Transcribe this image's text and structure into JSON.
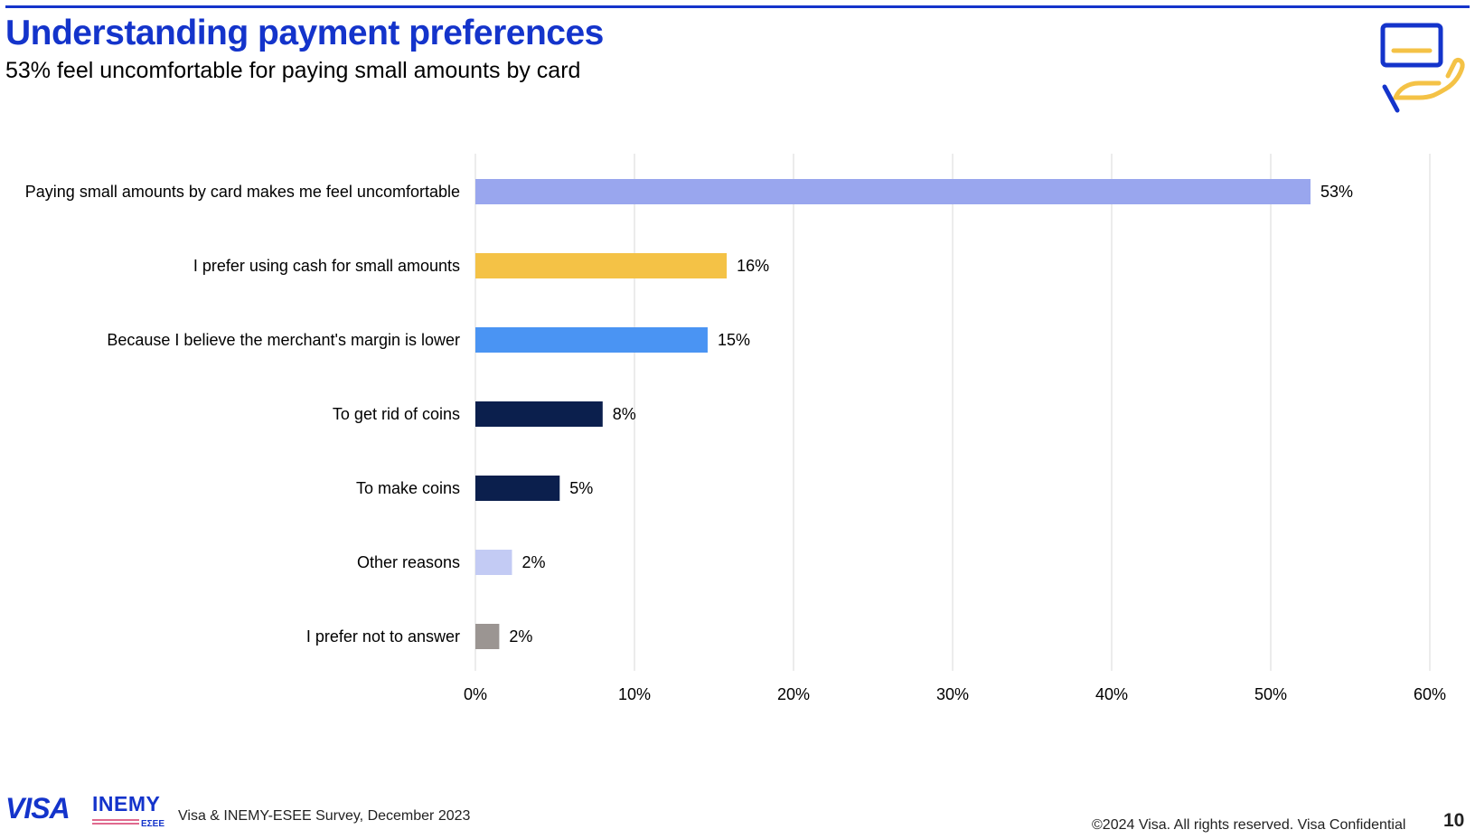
{
  "header": {
    "title": "Understanding payment preferences",
    "subtitle": "53% feel uncomfortable for paying small amounts by card"
  },
  "chart_data": {
    "type": "bar",
    "orientation": "horizontal",
    "categories": [
      "Paying small amounts by card makes me feel uncomfortable",
      "I prefer using cash for small amounts",
      "Because I believe the merchant's margin is lower",
      "To get rid of coins",
      "To make coins",
      "Other reasons",
      "I prefer not to answer"
    ],
    "values": [
      52.5,
      15.8,
      14.6,
      8.0,
      5.3,
      2.3,
      1.5
    ],
    "data_labels": [
      "53%",
      "16%",
      "15%",
      "8%",
      "5%",
      "2%",
      "2%"
    ],
    "colors": [
      "#99A6EE",
      "#F4C246",
      "#4A94F3",
      "#0B1F4D",
      "#0B1F4D",
      "#C3CBF4",
      "#9B9592"
    ],
    "xlim": [
      0,
      60
    ],
    "ticks": [
      0,
      10,
      20,
      30,
      40,
      50,
      60
    ],
    "tick_labels": [
      "0%",
      "10%",
      "20%",
      "30%",
      "40%",
      "50%",
      "60%"
    ],
    "grid": true,
    "xlabel": "",
    "ylabel": ""
  },
  "footer": {
    "visa_logo": "VISA",
    "inemy_logo": "INEMY",
    "inemy_sub": "ΕΣΕΕ",
    "source": "Visa & INEMY-ESEE Survey, December 2023",
    "copyright": "©2024 Visa. All rights reserved. Visa Confidential",
    "page_number": "10"
  },
  "icons": {
    "header_icon": "card-in-hand-icon",
    "icon_colors": {
      "blue": "#1434CB",
      "gold": "#F4C246"
    }
  }
}
